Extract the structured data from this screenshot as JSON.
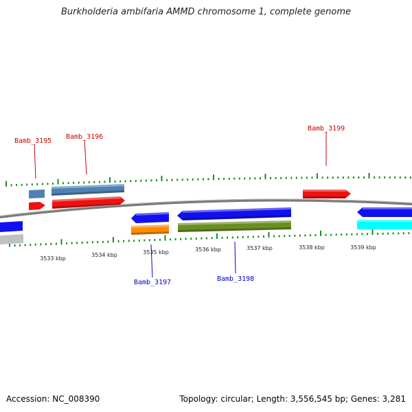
{
  "title": "Burkholderia ambifaria AMMD chromosome 1, complete genome",
  "footer": {
    "accession": "Accession: NC_008390",
    "summary": "Topology: circular; Length: 3,556,545 bp; Genes: 3,281"
  },
  "colors": {
    "backbone": "#8a8a8a",
    "tick": "#1a8a1a",
    "label_forward": "#cc0000",
    "label_reverse": "#0000cc"
  },
  "kbp_labels": [
    "3533 kbp",
    "3534 kbp",
    "3535 kbp",
    "3536 kbp",
    "3537 kbp",
    "3538 kbp",
    "3539 kbp"
  ],
  "gene_labels": {
    "bamb_3195": "Bamb_3195",
    "bamb_3196": "Bamb_3196",
    "bamb_3197": "Bamb_3197",
    "bamb_3198": "Bamb_3198",
    "bamb_3199": "Bamb_3199"
  },
  "feature_colors": {
    "forward_cds": "#ee1111",
    "reverse_cds": "#1111ee",
    "steel": "#4f82b4",
    "orange": "#ff8c00",
    "olive": "#6b8e23",
    "cyan": "#00ffff",
    "gray": "#c0c0c0"
  }
}
